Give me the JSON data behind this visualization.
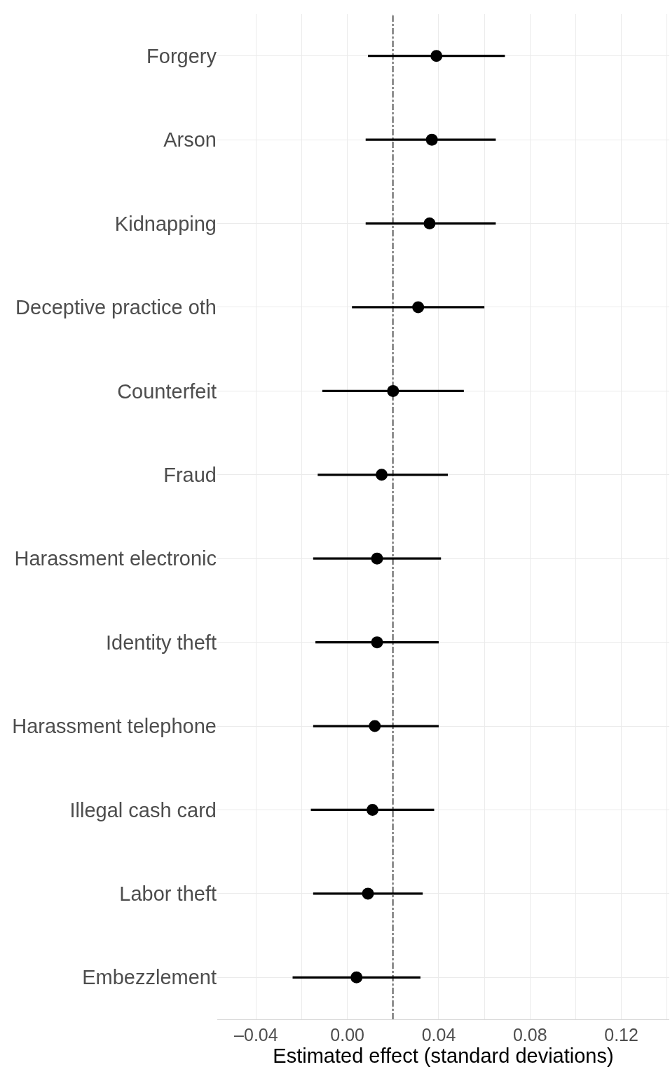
{
  "chart_data": {
    "type": "scatter",
    "orientation": "horizontal",
    "xlabel": "Estimated effect (standard deviations)",
    "categories": [
      "Forgery",
      "Arson",
      "Kidnapping",
      "Deceptive practice oth",
      "Counterfeit",
      "Fraud",
      "Harassment electronic",
      "Identity theft",
      "Harassment telephone",
      "Illegal cash card",
      "Labor theft",
      "Embezzlement"
    ],
    "series": [
      {
        "color": "#000000",
        "values": [
          0.039,
          0.037,
          0.036,
          0.031,
          0.02,
          0.015,
          0.013,
          0.013,
          0.012,
          0.011,
          0.009,
          0.004
        ],
        "errors": [
          [
            0.009,
            0.069
          ],
          [
            0.008,
            0.065
          ],
          [
            0.008,
            0.065
          ],
          [
            0.002,
            0.06
          ],
          [
            -0.011,
            0.051
          ],
          [
            -0.013,
            0.044
          ],
          [
            -0.015,
            0.041
          ],
          [
            -0.014,
            0.04
          ],
          [
            -0.015,
            0.04
          ],
          [
            -0.016,
            0.038
          ],
          [
            -0.015,
            0.033
          ],
          [
            -0.024,
            0.032
          ]
        ]
      }
    ],
    "xlim": [
      -0.057,
      0.141
    ],
    "xticks": [
      {
        "value": -0.04,
        "label": "–0.04"
      },
      {
        "value": 0.0,
        "label": "0.00"
      },
      {
        "value": 0.04,
        "label": "0.04"
      },
      {
        "value": 0.08,
        "label": "0.08"
      },
      {
        "value": 0.12,
        "label": "0.12"
      }
    ],
    "ref_lines": [
      {
        "axis": "x",
        "value": 0.02,
        "color": "#000000",
        "line_style": "dashdot"
      }
    ],
    "grid": true,
    "marker": "circle"
  }
}
